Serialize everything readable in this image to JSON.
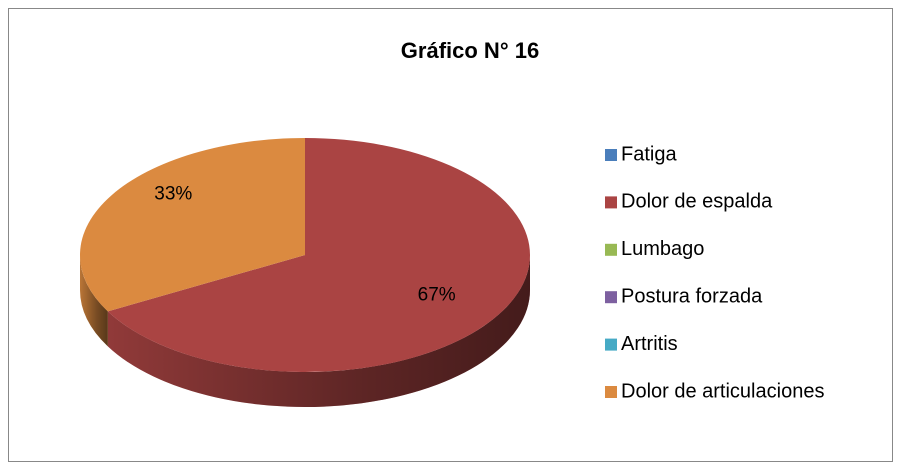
{
  "chart_data": {
    "type": "pie",
    "title": "Gráfico N° 16",
    "categories": [
      "Fatiga",
      "Dolor de espalda",
      "Lumbago",
      "Postura forzada",
      "Artritis",
      "Dolor de articulaciones"
    ],
    "values": [
      0,
      67,
      0,
      0,
      0,
      33
    ],
    "value_labels": [
      null,
      "67%",
      null,
      null,
      null,
      "33%"
    ],
    "colors": [
      "#4a7ebb",
      "#aa4443",
      "#98b954",
      "#7d60a0",
      "#46aac5",
      "#db8a40"
    ],
    "legend": "right"
  }
}
